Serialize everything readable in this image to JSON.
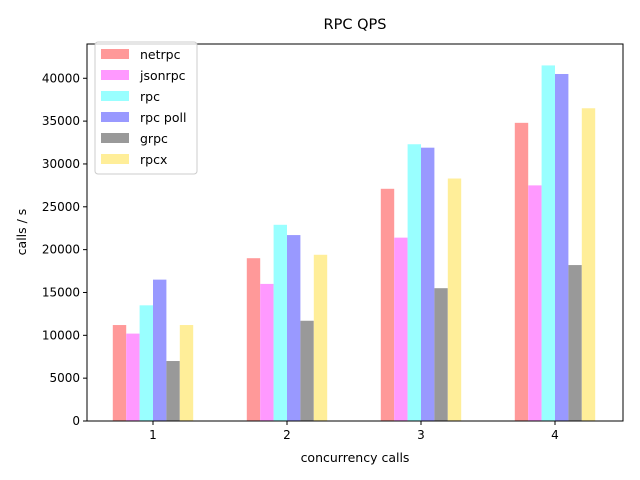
{
  "chart_data": {
    "type": "bar",
    "title": "RPC QPS",
    "xlabel": "concurrency calls",
    "ylabel": "calls / s",
    "categories": [
      "1",
      "2",
      "3",
      "4"
    ],
    "ylim": [
      0,
      44000
    ],
    "yticks": [
      0,
      5000,
      10000,
      15000,
      20000,
      25000,
      30000,
      35000,
      40000
    ],
    "legend_position": "top-left",
    "grid": false,
    "series": [
      {
        "name": "netrpc",
        "color": "#ff9999",
        "values": [
          11200,
          19000,
          27100,
          34800
        ]
      },
      {
        "name": "jsonrpc",
        "color": "#ff99ff",
        "values": [
          10200,
          16000,
          21400,
          27500
        ]
      },
      {
        "name": "rpc",
        "color": "#99ffff",
        "values": [
          13500,
          22900,
          32300,
          41500
        ]
      },
      {
        "name": "rpc poll",
        "color": "#9999ff",
        "values": [
          16500,
          21700,
          31900,
          40500
        ]
      },
      {
        "name": "grpc",
        "color": "#999999",
        "values": [
          7000,
          11700,
          15500,
          18200
        ]
      },
      {
        "name": "rpcx",
        "color": "#ffee99",
        "values": [
          11200,
          19400,
          28300,
          36500
        ]
      }
    ]
  }
}
